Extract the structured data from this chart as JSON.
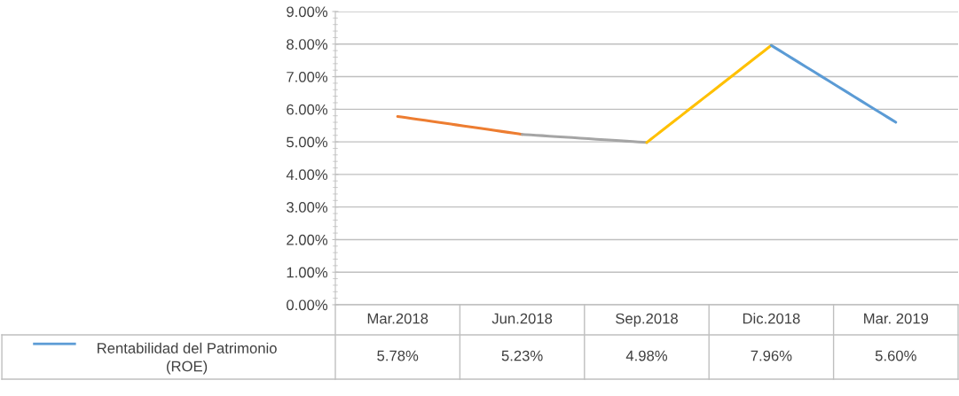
{
  "chart_data": {
    "type": "line",
    "categories": [
      "Mar.2018",
      "Jun.2018",
      "Sep.2018",
      "Dic.2018",
      "Mar. 2019"
    ],
    "series": [
      {
        "color": "#ed7d31",
        "values": [
          5.78,
          5.23,
          null,
          null,
          null
        ]
      },
      {
        "color": "#a5a5a5",
        "values": [
          null,
          5.23,
          4.98,
          null,
          null
        ]
      },
      {
        "color": "#ffc000",
        "values": [
          null,
          null,
          4.98,
          7.96,
          null
        ]
      },
      {
        "name": "Rentabilidad del Patrimonio (ROE)",
        "color": "#5b9bd5",
        "values": [
          null,
          null,
          null,
          7.96,
          5.6
        ]
      }
    ],
    "annotations": [
      "5.78%",
      "5.23%",
      "4.98%",
      "7.96%",
      "5.60%"
    ],
    "ylim": [
      0,
      9
    ],
    "yticks": [
      {
        "value": 0,
        "label": "0.00%"
      },
      {
        "value": 1,
        "label": "1.00%"
      },
      {
        "value": 2,
        "label": "2.00%"
      },
      {
        "value": 3,
        "label": "3.00%"
      },
      {
        "value": 4,
        "label": "4.00%"
      },
      {
        "value": 5,
        "label": "5.00%"
      },
      {
        "value": 6,
        "label": "6.00%"
      },
      {
        "value": 7,
        "label": "7.00%"
      },
      {
        "value": 8,
        "label": "8.00%"
      },
      {
        "value": 9,
        "label": "9.00%"
      }
    ],
    "grid": "y",
    "legend": "bottom left",
    "marker": "none",
    "line_style": "solid"
  }
}
